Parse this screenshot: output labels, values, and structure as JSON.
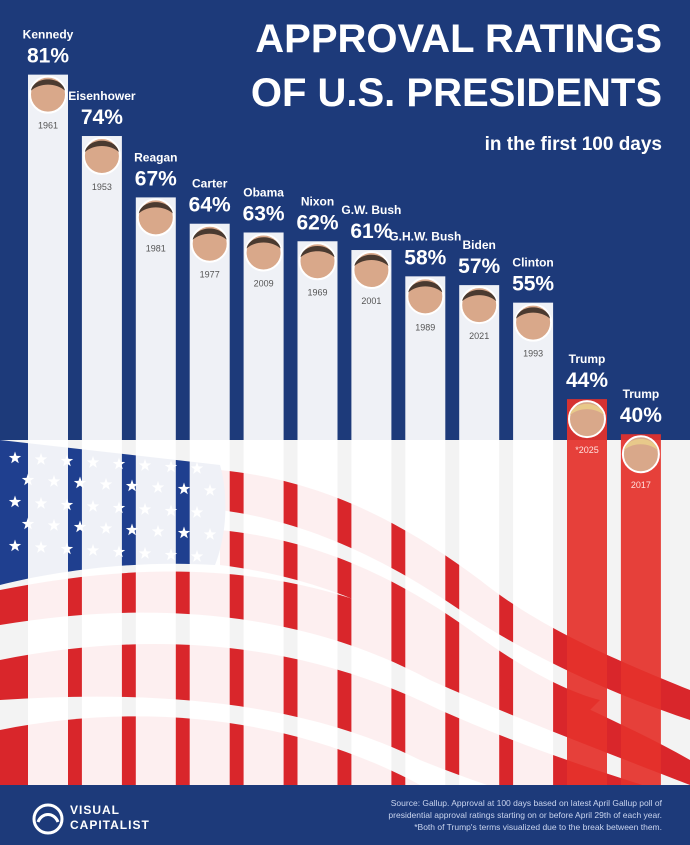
{
  "chart_data": {
    "type": "bar",
    "title_lines": [
      "APPROVAL RATINGS",
      "OF U.S. PRESIDENTS"
    ],
    "subtitle": "in the first 100 days",
    "categories": [
      "Kennedy",
      "Eisenhower",
      "Reagan",
      "Carter",
      "Obama",
      "Nixon",
      "G.W. Bush",
      "G.H.W. Bush",
      "Biden",
      "Clinton",
      "Trump",
      "Trump"
    ],
    "years": [
      "1961",
      "1953",
      "1981",
      "1977",
      "2009",
      "1969",
      "2001",
      "1989",
      "2021",
      "1993",
      "*2025",
      "2017"
    ],
    "values": [
      81,
      74,
      67,
      64,
      63,
      62,
      61,
      58,
      57,
      55,
      44,
      40
    ],
    "value_labels": [
      "81%",
      "74%",
      "67%",
      "64%",
      "63%",
      "62%",
      "61%",
      "58%",
      "57%",
      "55%",
      "44%",
      "40%"
    ],
    "bar_colors": [
      "#ffffff",
      "#ffffff",
      "#ffffff",
      "#ffffff",
      "#ffffff",
      "#ffffff",
      "#ffffff",
      "#ffffff",
      "#ffffff",
      "#ffffff",
      "#e4322b",
      "#e4322b"
    ],
    "source_lines": [
      "Source: Gallup. Approval at 100 days based on latest April Gallup poll of",
      "presidential approval ratings starting on or before April 29th of each year.",
      "*Both of Trump's terms visualized due to the break between them."
    ],
    "logo_lines": [
      "VISUAL",
      "CAPITALIST"
    ]
  }
}
